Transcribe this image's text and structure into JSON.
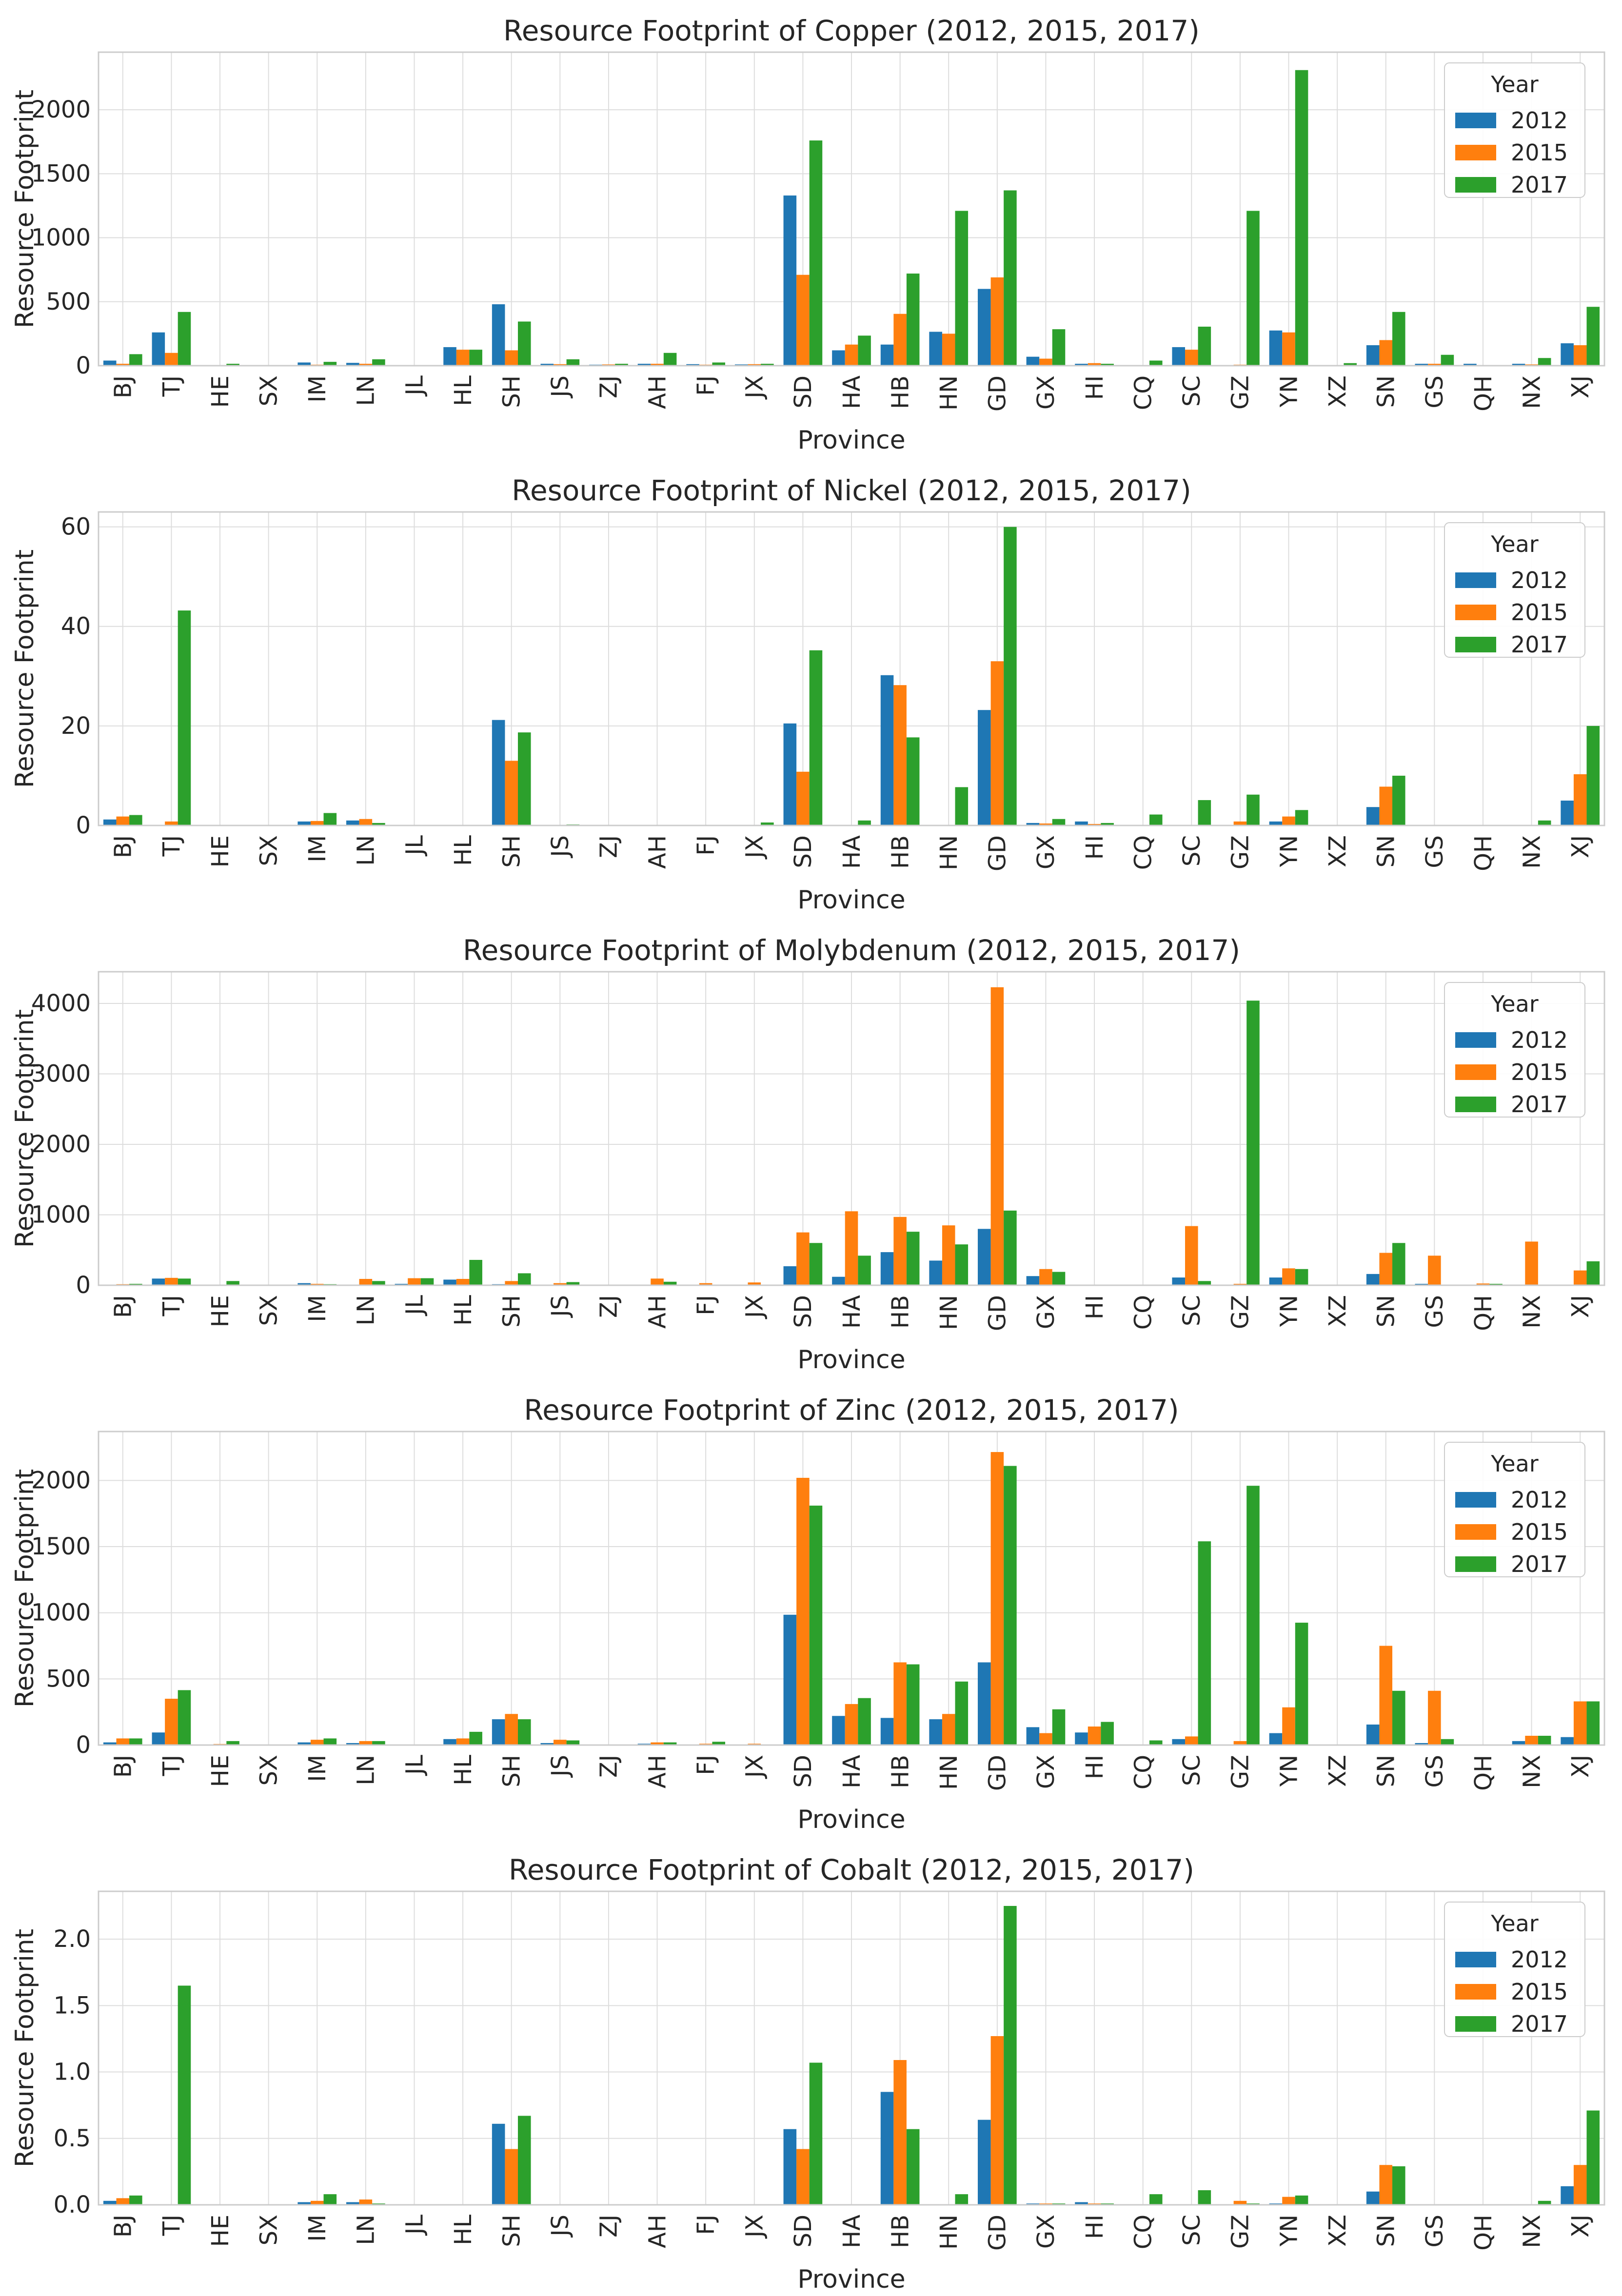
{
  "legend": {
    "title": "Year",
    "entries": [
      "2012",
      "2015",
      "2017"
    ]
  },
  "colors": {
    "2012": "#1f77b4",
    "2015": "#ff7f0e",
    "2017": "#2ca02c",
    "grid": "#dddddd",
    "spine": "#cccccc",
    "text": "#262626"
  },
  "chart_data": [
    {
      "type": "bar",
      "title": "Resource Footprint of Copper (2012, 2015, 2017)",
      "xlabel": "Province",
      "ylabel": "Resource Footprint",
      "categories": [
        "BJ",
        "TJ",
        "HE",
        "SX",
        "IM",
        "LN",
        "JL",
        "HL",
        "SH",
        "JS",
        "ZJ",
        "AH",
        "FJ",
        "JX",
        "SD",
        "HA",
        "HB",
        "HN",
        "GD",
        "GX",
        "HI",
        "CQ",
        "SC",
        "GZ",
        "YN",
        "XZ",
        "SN",
        "GS",
        "QH",
        "NX",
        "XJ"
      ],
      "ylim": [
        0,
        2450
      ],
      "yticks": [
        0,
        500,
        1000,
        1500,
        2000
      ],
      "ytick_labels": [
        "0",
        "500",
        "1000",
        "1500",
        "2000"
      ],
      "series": [
        {
          "name": "2012",
          "values": [
            40,
            260,
            2,
            3,
            25,
            22,
            3,
            145,
            480,
            15,
            8,
            15,
            12,
            10,
            1330,
            120,
            165,
            265,
            600,
            70,
            15,
            5,
            145,
            2,
            275,
            3,
            160,
            15,
            15,
            15,
            175
          ]
        },
        {
          "name": "2015",
          "values": [
            15,
            100,
            3,
            2,
            8,
            15,
            2,
            125,
            120,
            12,
            10,
            15,
            8,
            12,
            710,
            165,
            405,
            250,
            690,
            55,
            20,
            5,
            125,
            8,
            260,
            2,
            200,
            15,
            5,
            10,
            160
          ]
        },
        {
          "name": "2017",
          "values": [
            90,
            420,
            15,
            5,
            30,
            50,
            3,
            125,
            345,
            50,
            15,
            100,
            25,
            15,
            1760,
            235,
            720,
            1210,
            1370,
            285,
            15,
            40,
            305,
            1210,
            2310,
            20,
            420,
            85,
            5,
            60,
            460
          ]
        }
      ]
    },
    {
      "type": "bar",
      "title": "Resource Footprint of Nickel (2012, 2015, 2017)",
      "xlabel": "Province",
      "ylabel": "Resource Footprint",
      "categories": [
        "BJ",
        "TJ",
        "HE",
        "SX",
        "IM",
        "LN",
        "JL",
        "HL",
        "SH",
        "JS",
        "ZJ",
        "AH",
        "FJ",
        "JX",
        "SD",
        "HA",
        "HB",
        "HN",
        "GD",
        "GX",
        "HI",
        "CQ",
        "SC",
        "GZ",
        "YN",
        "XZ",
        "SN",
        "GS",
        "QH",
        "NX",
        "XJ"
      ],
      "ylim": [
        0,
        63
      ],
      "yticks": [
        0,
        20,
        40,
        60
      ],
      "ytick_labels": [
        "0",
        "20",
        "40",
        "60"
      ],
      "series": [
        {
          "name": "2012",
          "values": [
            1.2,
            0,
            0,
            0,
            0.8,
            1.0,
            0,
            0,
            21.2,
            0,
            0,
            0,
            0,
            0,
            20.5,
            0,
            30.2,
            0,
            23.2,
            0.5,
            0.8,
            0,
            0,
            0,
            0.8,
            0,
            3.7,
            0,
            0,
            0,
            5.0
          ]
        },
        {
          "name": "2015",
          "values": [
            1.8,
            0.8,
            0,
            0,
            0.9,
            1.3,
            0,
            0,
            13.0,
            0,
            0,
            0,
            0,
            0,
            10.8,
            0,
            28.2,
            0,
            33.0,
            0.4,
            0.3,
            0,
            0,
            0.8,
            1.8,
            0,
            7.8,
            0,
            0,
            0,
            10.3
          ]
        },
        {
          "name": "2017",
          "values": [
            2.1,
            43.2,
            0,
            0,
            2.5,
            0.5,
            0,
            0,
            18.7,
            0.2,
            0,
            0,
            0,
            0.6,
            35.2,
            1.0,
            17.7,
            7.7,
            60.0,
            1.3,
            0.5,
            2.2,
            5.1,
            6.2,
            3.1,
            0,
            10.0,
            0,
            0,
            1.0,
            20.0
          ]
        }
      ]
    },
    {
      "type": "bar",
      "title": "Resource Footprint of Molybdenum (2012, 2015, 2017)",
      "xlabel": "Province",
      "ylabel": "Resource Footprint",
      "categories": [
        "BJ",
        "TJ",
        "HE",
        "SX",
        "IM",
        "LN",
        "JL",
        "HL",
        "SH",
        "JS",
        "ZJ",
        "AH",
        "FJ",
        "JX",
        "SD",
        "HA",
        "HB",
        "HN",
        "GD",
        "GX",
        "HI",
        "CQ",
        "SC",
        "GZ",
        "YN",
        "XZ",
        "SN",
        "GS",
        "QH",
        "NX",
        "XJ"
      ],
      "ylim": [
        0,
        4450
      ],
      "yticks": [
        0,
        1000,
        2000,
        3000,
        4000
      ],
      "ytick_labels": [
        "0",
        "1000",
        "2000",
        "3000",
        "4000"
      ],
      "series": [
        {
          "name": "2012",
          "values": [
            10,
            95,
            5,
            2,
            30,
            10,
            20,
            80,
            15,
            10,
            2,
            10,
            5,
            5,
            270,
            120,
            470,
            350,
            800,
            130,
            3,
            3,
            110,
            10,
            110,
            2,
            160,
            20,
            5,
            5,
            10
          ]
        },
        {
          "name": "2015",
          "values": [
            15,
            105,
            10,
            3,
            20,
            90,
            100,
            90,
            60,
            30,
            3,
            95,
            30,
            40,
            750,
            1050,
            970,
            850,
            4230,
            230,
            5,
            5,
            840,
            20,
            240,
            2,
            460,
            420,
            25,
            620,
            210
          ]
        },
        {
          "name": "2017",
          "values": [
            20,
            95,
            60,
            2,
            15,
            60,
            100,
            360,
            170,
            45,
            3,
            50,
            10,
            10,
            600,
            420,
            760,
            580,
            1060,
            190,
            5,
            5,
            60,
            4040,
            230,
            2,
            600,
            10,
            20,
            10,
            340
          ]
        }
      ]
    },
    {
      "type": "bar",
      "title": "Resource Footprint of Zinc (2012, 2015, 2017)",
      "xlabel": "Province",
      "ylabel": "Resource Footprint",
      "categories": [
        "BJ",
        "TJ",
        "HE",
        "SX",
        "IM",
        "LN",
        "JL",
        "HL",
        "SH",
        "JS",
        "ZJ",
        "AH",
        "FJ",
        "JX",
        "SD",
        "HA",
        "HB",
        "HN",
        "GD",
        "GX",
        "HI",
        "CQ",
        "SC",
        "GZ",
        "YN",
        "XZ",
        "SN",
        "GS",
        "QH",
        "NX",
        "XJ"
      ],
      "ylim": [
        0,
        2370
      ],
      "yticks": [
        0,
        500,
        1000,
        1500,
        2000
      ],
      "ytick_labels": [
        "0",
        "500",
        "1000",
        "1500",
        "2000"
      ],
      "series": [
        {
          "name": "2012",
          "values": [
            20,
            95,
            5,
            3,
            20,
            15,
            3,
            45,
            195,
            15,
            3,
            10,
            5,
            5,
            985,
            220,
            205,
            195,
            625,
            135,
            95,
            5,
            45,
            5,
            90,
            3,
            155,
            15,
            5,
            30,
            60
          ]
        },
        {
          "name": "2015",
          "values": [
            50,
            350,
            8,
            3,
            40,
            30,
            3,
            50,
            235,
            40,
            5,
            20,
            10,
            10,
            2020,
            310,
            625,
            235,
            2215,
            90,
            140,
            5,
            65,
            30,
            285,
            3,
            750,
            410,
            5,
            70,
            330
          ]
        },
        {
          "name": "2017",
          "values": [
            50,
            415,
            30,
            5,
            50,
            30,
            3,
            100,
            195,
            35,
            5,
            20,
            25,
            5,
            1810,
            355,
            610,
            480,
            2110,
            270,
            175,
            35,
            1540,
            1960,
            925,
            5,
            410,
            45,
            5,
            70,
            330
          ]
        }
      ]
    },
    {
      "type": "bar",
      "title": "Resource Footprint of Cobalt (2012, 2015, 2017)",
      "xlabel": "Province",
      "ylabel": "Resource Footprint",
      "categories": [
        "BJ",
        "TJ",
        "HE",
        "SX",
        "IM",
        "LN",
        "JL",
        "HL",
        "SH",
        "JS",
        "ZJ",
        "AH",
        "FJ",
        "JX",
        "SD",
        "HA",
        "HB",
        "HN",
        "GD",
        "GX",
        "HI",
        "CQ",
        "SC",
        "GZ",
        "YN",
        "XZ",
        "SN",
        "GS",
        "QH",
        "NX",
        "XJ"
      ],
      "ylim": [
        0,
        2.36
      ],
      "yticks": [
        0,
        0.5,
        1.0,
        1.5,
        2.0
      ],
      "ytick_labels": [
        "0.0",
        "0.5",
        "1.0",
        "1.5",
        "2.0"
      ],
      "series": [
        {
          "name": "2012",
          "values": [
            0.03,
            0,
            0,
            0,
            0.02,
            0.02,
            0,
            0,
            0.61,
            0,
            0,
            0,
            0,
            0,
            0.57,
            0,
            0.85,
            0,
            0.64,
            0.01,
            0.02,
            0,
            0,
            0,
            0.01,
            0,
            0.1,
            0,
            0,
            0,
            0.14
          ]
        },
        {
          "name": "2015",
          "values": [
            0.05,
            0,
            0,
            0,
            0.03,
            0.04,
            0,
            0,
            0.42,
            0,
            0,
            0,
            0,
            0,
            0.42,
            0,
            1.09,
            0,
            1.27,
            0.01,
            0.01,
            0,
            0,
            0.03,
            0.06,
            0,
            0.3,
            0,
            0,
            0,
            0.3
          ]
        },
        {
          "name": "2017",
          "values": [
            0.07,
            1.65,
            0,
            0,
            0.08,
            0.01,
            0,
            0,
            0.67,
            0,
            0,
            0,
            0,
            0,
            1.07,
            0,
            0.57,
            0.08,
            2.25,
            0.01,
            0.01,
            0.08,
            0.11,
            0.01,
            0.07,
            0,
            0.29,
            0,
            0,
            0.03,
            0.71
          ]
        }
      ]
    }
  ]
}
